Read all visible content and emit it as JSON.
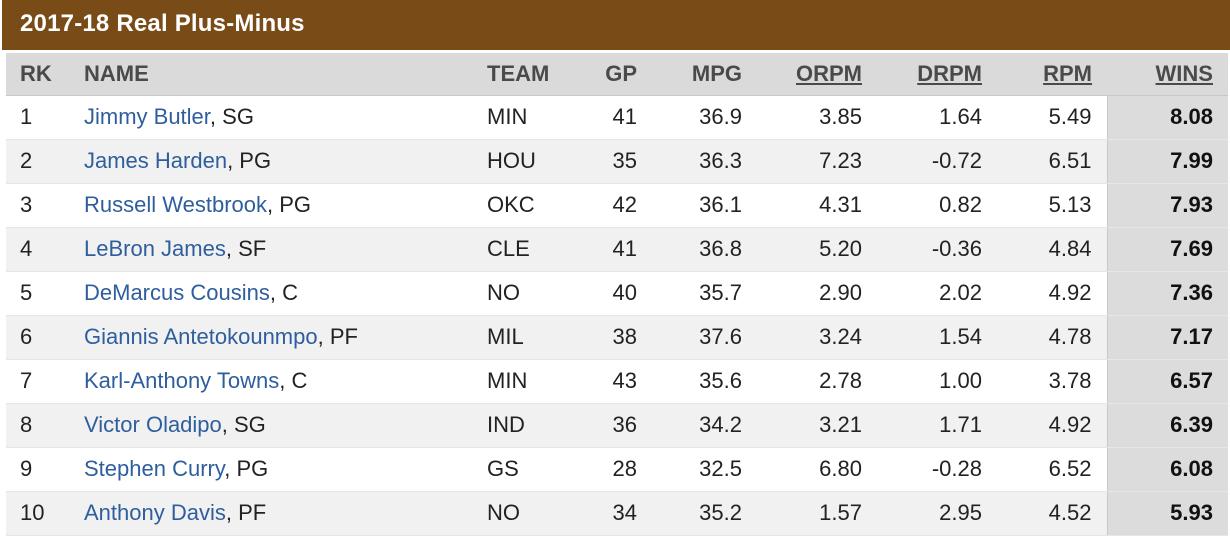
{
  "title": "2017-18 Real Plus-Minus",
  "colors": {
    "header_bar": "#794b17",
    "link": "#2f5e9e",
    "wins_column_bg": "#dcdcdc"
  },
  "columns": {
    "rk": "RK",
    "name": "NAME",
    "team": "TEAM",
    "gp": "GP",
    "mpg": "MPG",
    "orpm": "ORPM",
    "drpm": "DRPM",
    "rpm": "RPM",
    "wins": "WINS"
  },
  "rows": [
    {
      "rk": "1",
      "player": "Jimmy Butler",
      "pos": ", SG",
      "team": "MIN",
      "gp": "41",
      "mpg": "36.9",
      "orpm": "3.85",
      "drpm": "1.64",
      "rpm": "5.49",
      "wins": "8.08"
    },
    {
      "rk": "2",
      "player": "James Harden",
      "pos": ", PG",
      "team": "HOU",
      "gp": "35",
      "mpg": "36.3",
      "orpm": "7.23",
      "drpm": "-0.72",
      "rpm": "6.51",
      "wins": "7.99"
    },
    {
      "rk": "3",
      "player": "Russell Westbrook",
      "pos": ", PG",
      "team": "OKC",
      "gp": "42",
      "mpg": "36.1",
      "orpm": "4.31",
      "drpm": "0.82",
      "rpm": "5.13",
      "wins": "7.93"
    },
    {
      "rk": "4",
      "player": "LeBron James",
      "pos": ", SF",
      "team": "CLE",
      "gp": "41",
      "mpg": "36.8",
      "orpm": "5.20",
      "drpm": "-0.36",
      "rpm": "4.84",
      "wins": "7.69"
    },
    {
      "rk": "5",
      "player": "DeMarcus Cousins",
      "pos": ", C",
      "team": "NO",
      "gp": "40",
      "mpg": "35.7",
      "orpm": "2.90",
      "drpm": "2.02",
      "rpm": "4.92",
      "wins": "7.36"
    },
    {
      "rk": "6",
      "player": "Giannis Antetokounmpo",
      "pos": ", PF",
      "team": "MIL",
      "gp": "38",
      "mpg": "37.6",
      "orpm": "3.24",
      "drpm": "1.54",
      "rpm": "4.78",
      "wins": "7.17"
    },
    {
      "rk": "7",
      "player": "Karl-Anthony Towns",
      "pos": ", C",
      "team": "MIN",
      "gp": "43",
      "mpg": "35.6",
      "orpm": "2.78",
      "drpm": "1.00",
      "rpm": "3.78",
      "wins": "6.57"
    },
    {
      "rk": "8",
      "player": "Victor Oladipo",
      "pos": ", SG",
      "team": "IND",
      "gp": "36",
      "mpg": "34.2",
      "orpm": "3.21",
      "drpm": "1.71",
      "rpm": "4.92",
      "wins": "6.39"
    },
    {
      "rk": "9",
      "player": "Stephen Curry",
      "pos": ", PG",
      "team": "GS",
      "gp": "28",
      "mpg": "32.5",
      "orpm": "6.80",
      "drpm": "-0.28",
      "rpm": "6.52",
      "wins": "6.08"
    },
    {
      "rk": "10",
      "player": "Anthony Davis",
      "pos": ", PF",
      "team": "NO",
      "gp": "34",
      "mpg": "35.2",
      "orpm": "1.57",
      "drpm": "2.95",
      "rpm": "4.52",
      "wins": "5.93"
    }
  ]
}
